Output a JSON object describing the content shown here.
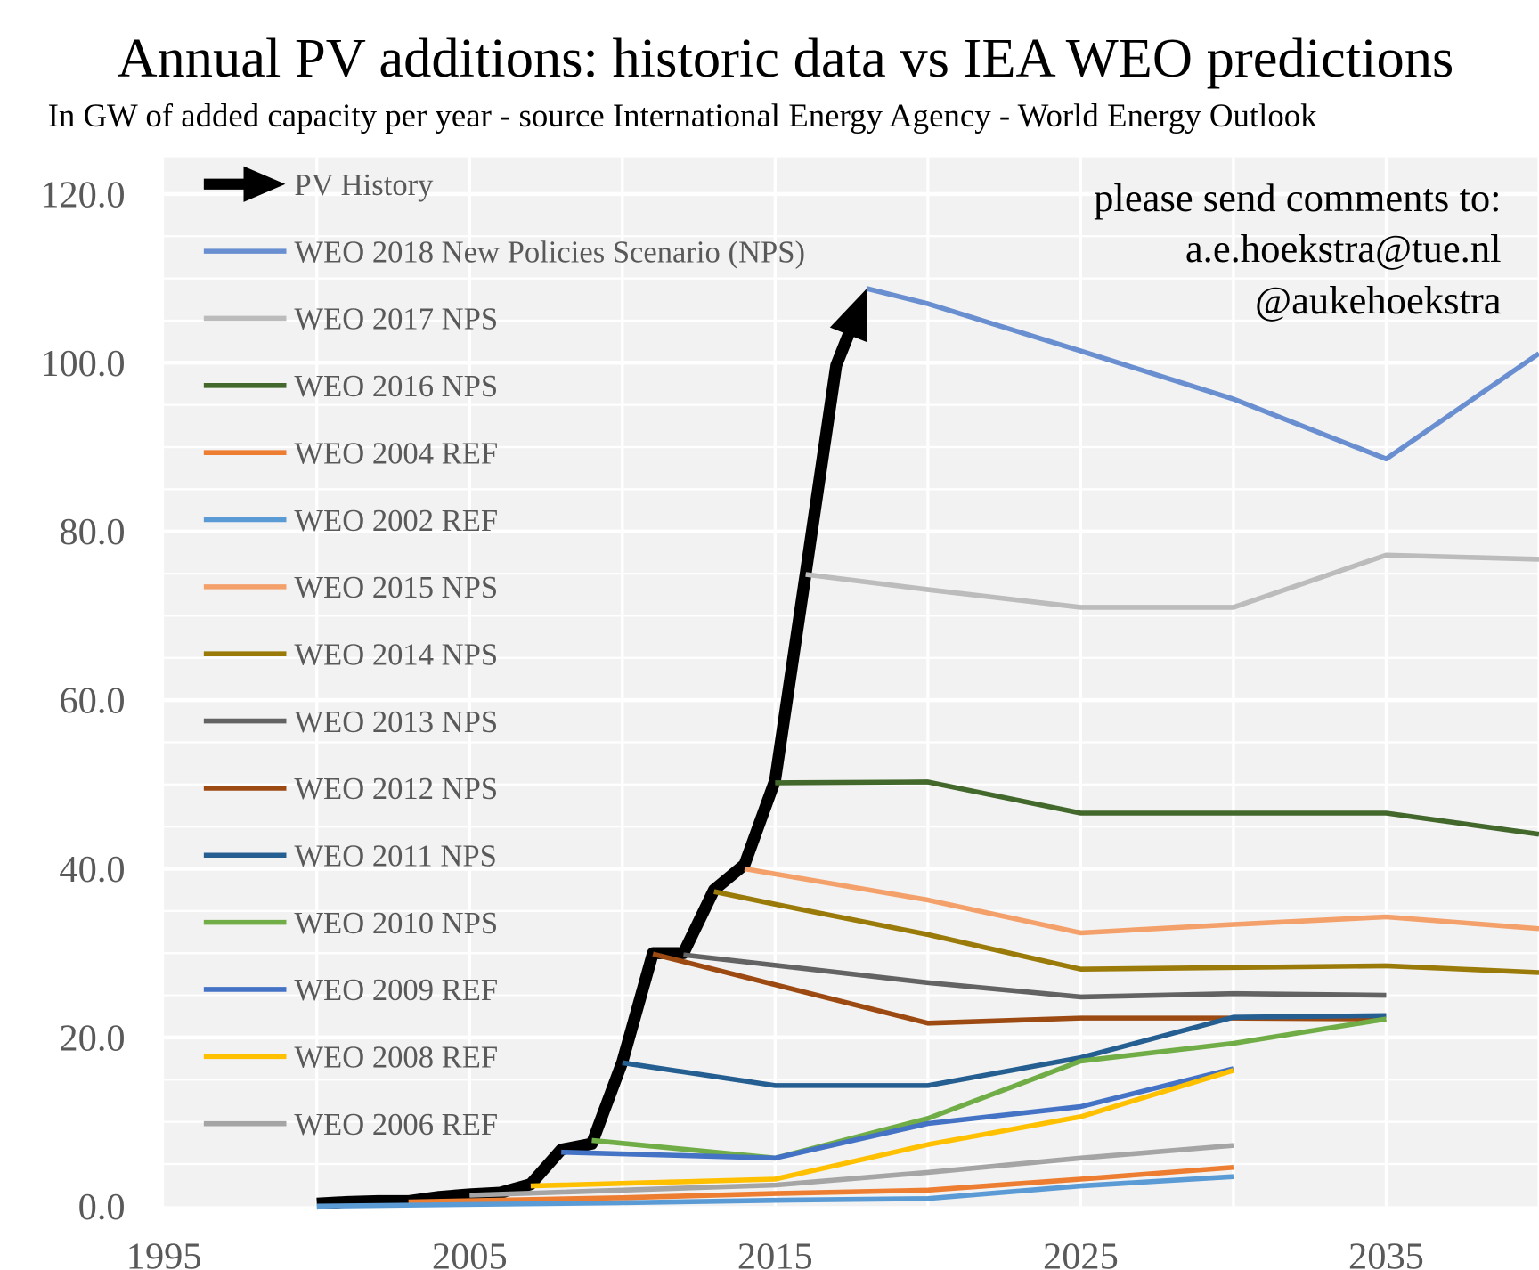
{
  "chart_data": {
    "type": "line",
    "title": "Annual PV additions: historic data vs IEA WEO predictions",
    "subtitle": "In GW of added capacity per year - source International Energy Agency - World Energy Outlook",
    "annotation": [
      "please send comments to:",
      "a.e.hoekstra@tue.nl",
      "@aukehoekstra"
    ],
    "xlabel": "",
    "ylabel": "",
    "xlim": [
      1995,
      2040
    ],
    "ylim": [
      0,
      120
    ],
    "x_ticks": [
      "1995",
      "2005",
      "2015",
      "2025",
      "2035"
    ],
    "y_ticks": [
      "0.0",
      "20.0",
      "40.0",
      "60.0",
      "80.0",
      "100.0",
      "120.0"
    ],
    "grid": true,
    "legend_position": "top-left",
    "series": [
      {
        "name": "PV History",
        "color": "#000000",
        "width": 12,
        "arrow": true,
        "x": [
          2000,
          2001,
          2002,
          2003,
          2004,
          2005,
          2006,
          2007,
          2008,
          2009,
          2010,
          2011,
          2012,
          2013,
          2014,
          2015,
          2016,
          2017,
          2018
        ],
        "y": [
          0.3,
          0.5,
          0.6,
          0.6,
          1.1,
          1.4,
          1.6,
          2.6,
          6.7,
          7.4,
          17.1,
          30.0,
          30.0,
          37.5,
          40.5,
          50.5,
          75.0,
          99.7,
          108.8
        ]
      },
      {
        "name": "WEO 2018 New Policies Scenario (NPS)",
        "color": "#6a8fd0",
        "x": [
          2018,
          2020,
          2025,
          2030,
          2035,
          2040
        ],
        "y": [
          108.8,
          107.0,
          101.4,
          95.7,
          88.6,
          101.1
        ]
      },
      {
        "name": "WEO 2017 NPS",
        "color": "#bcbcbc",
        "x": [
          2016,
          2020,
          2025,
          2030,
          2035,
          2040
        ],
        "y": [
          74.9,
          73.1,
          71.0,
          71.0,
          77.2,
          76.7
        ]
      },
      {
        "name": "WEO 2016 NPS",
        "color": "#43682b",
        "x": [
          2015,
          2020,
          2025,
          2030,
          2035,
          2040
        ],
        "y": [
          50.2,
          50.3,
          46.6,
          46.6,
          46.6,
          44.1
        ]
      },
      {
        "name": "WEO 2004 REF",
        "color": "#ed7d31",
        "x": [
          2003,
          2010,
          2015,
          2020,
          2025,
          2030
        ],
        "y": [
          0.5,
          1.0,
          1.5,
          1.9,
          3.2,
          4.6
        ]
      },
      {
        "name": "WEO 2002 REF",
        "color": "#5b9bd5",
        "x": [
          2000,
          2010,
          2015,
          2020,
          2025,
          2030
        ],
        "y": [
          0.0,
          0.4,
          0.7,
          0.9,
          2.4,
          3.5
        ]
      },
      {
        "name": "WEO 2015 NPS",
        "color": "#f4a06a",
        "x": [
          2014,
          2020,
          2025,
          2030,
          2035,
          2040
        ],
        "y": [
          40.0,
          36.3,
          32.4,
          33.4,
          34.3,
          32.9
        ]
      },
      {
        "name": "WEO 2014 NPS",
        "color": "#9a7b0a",
        "x": [
          2013,
          2015,
          2020,
          2025,
          2030,
          2035,
          2040
        ],
        "y": [
          37.3,
          35.8,
          32.2,
          28.1,
          28.3,
          28.5,
          27.7
        ]
      },
      {
        "name": "WEO 2013 NPS",
        "color": "#636363",
        "x": [
          2012,
          2020,
          2025,
          2030,
          2035
        ],
        "y": [
          29.8,
          26.5,
          24.8,
          25.2,
          25.0
        ]
      },
      {
        "name": "WEO 2012 NPS",
        "color": "#9c4a12",
        "x": [
          2011,
          2020,
          2025,
          2030,
          2035
        ],
        "y": [
          29.9,
          21.7,
          22.3,
          22.3,
          22.2
        ]
      },
      {
        "name": "WEO 2011 NPS",
        "color": "#255e91",
        "x": [
          2010,
          2015,
          2020,
          2025,
          2030,
          2035
        ],
        "y": [
          17.0,
          14.3,
          14.3,
          17.6,
          22.4,
          22.6
        ]
      },
      {
        "name": "WEO 2010 NPS",
        "color": "#70ad47",
        "x": [
          2009,
          2015,
          2020,
          2025,
          2030,
          2035
        ],
        "y": [
          7.8,
          5.7,
          10.4,
          17.2,
          19.3,
          22.2
        ]
      },
      {
        "name": "WEO 2009 REF",
        "color": "#4472c4",
        "x": [
          2008,
          2015,
          2020,
          2025,
          2030
        ],
        "y": [
          6.4,
          5.7,
          9.8,
          11.8,
          16.3
        ]
      },
      {
        "name": "WEO 2008 REF",
        "color": "#ffc000",
        "x": [
          2007,
          2015,
          2020,
          2025,
          2030
        ],
        "y": [
          2.4,
          3.2,
          7.3,
          10.6,
          16.1
        ]
      },
      {
        "name": "WEO 2006 REF",
        "color": "#a5a5a5",
        "x": [
          2005,
          2015,
          2020,
          2025,
          2030
        ],
        "y": [
          1.3,
          2.5,
          4.0,
          5.7,
          7.2
        ]
      }
    ]
  }
}
